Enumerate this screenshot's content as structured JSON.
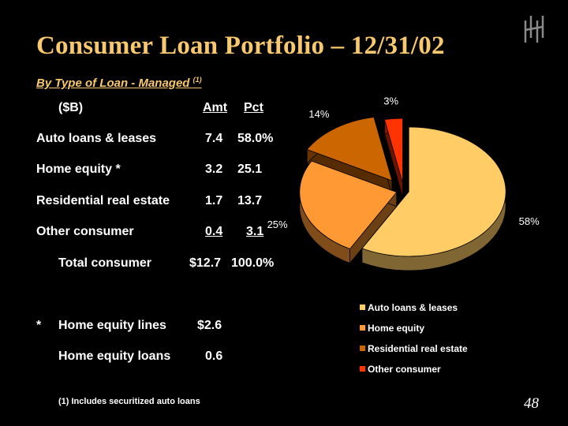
{
  "slide": {
    "title": "Consumer Loan Portfolio – 12/31/02",
    "subtitle": "By Type of Loan - Managed",
    "subtitle_sup": "(1)",
    "page_number": "48",
    "footnote": "(1)  Includes securitized auto loans"
  },
  "table": {
    "header": {
      "unit": "($B)",
      "amt": "Amt",
      "pct": "Pct"
    },
    "rows": [
      {
        "label": "Auto loans & leases",
        "amt": "7.4",
        "pct": "58.0%"
      },
      {
        "label": "Home equity *",
        "amt": "3.2",
        "pct": "25.1"
      },
      {
        "label": "Residential real estate",
        "amt": "1.7",
        "pct": "13.7"
      },
      {
        "label": "Other consumer",
        "amt": "0.4",
        "pct": "3.1"
      }
    ],
    "total": {
      "label": "Total consumer",
      "amt": "$12.7",
      "pct": "100.0%"
    }
  },
  "note": {
    "marker": "*",
    "rows": [
      {
        "label": "Home equity lines",
        "amt": "$2.6"
      },
      {
        "label": "Home equity loans",
        "amt": "0.6"
      }
    ]
  },
  "chart_data": {
    "type": "pie",
    "title": "",
    "categories": [
      "Auto loans & leases",
      "Home equity",
      "Residential real estate",
      "Other consumer"
    ],
    "values": [
      58,
      25,
      14,
      3
    ],
    "data_labels": [
      "58%",
      "25%",
      "14%",
      "3%"
    ],
    "colors": [
      "#ffcc66",
      "#ff9933",
      "#cc6600",
      "#ff3300"
    ],
    "legend_position": "bottom-right",
    "exploded": true,
    "three_d": true
  },
  "colors": {
    "background": "#000000",
    "title": "#f7c86e",
    "text": "#ffffff"
  }
}
